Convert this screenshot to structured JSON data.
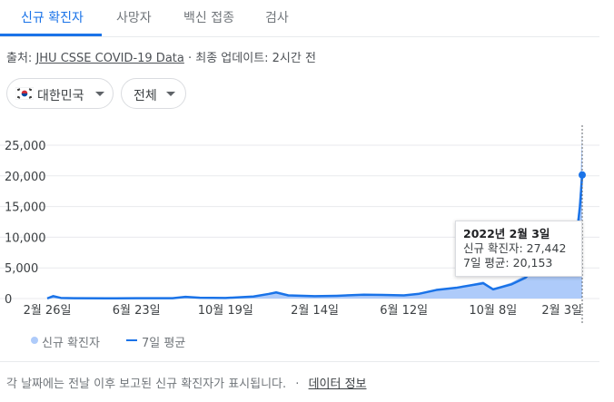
{
  "tabs": [
    {
      "label": "신규 확진자",
      "active": true
    },
    {
      "label": "사망자",
      "active": false
    },
    {
      "label": "백신 접종",
      "active": false
    },
    {
      "label": "검사",
      "active": false
    }
  ],
  "source": {
    "prefix": "출처: ",
    "link": "JHU CSSE COVID-19 Data",
    "suffix": " · 최종 업데이트: 2시간 전"
  },
  "filters": {
    "region": {
      "label": "대한민국",
      "icon": "korea-flag-icon"
    },
    "period": {
      "label": "전체"
    }
  },
  "colors": {
    "accent": "#1a73e8",
    "area_fill": "#aecbfa",
    "line": "#1a73e8",
    "grid": "#e8eaed"
  },
  "tooltip": {
    "title": "2022년 2월 3일",
    "cases_label": "신규 확진자: 27,442",
    "avg_label": "7일 평균: 20,153"
  },
  "legend": {
    "cases": "신규 확진자",
    "avg": "7일 평균"
  },
  "footer": {
    "note": "각 날짜에는 전날 이후 보고된 신규 확진자가 표시됩니다.",
    "sep": "·",
    "link": "데이터 정보"
  },
  "chart_data": {
    "type": "area",
    "title": "",
    "xlabel": "",
    "ylabel": "",
    "ylim": [
      0,
      25000
    ],
    "yticks": [
      "25,000",
      "20,000",
      "15,000",
      "10,000",
      "5,000",
      "0"
    ],
    "xticks": [
      "2월 26일",
      "6월 23일",
      "10월 19일",
      "2월 14일",
      "6월 12일",
      "10월 8일",
      "2월 3일"
    ],
    "grid": true,
    "legend_position": "bottom-left",
    "x": [
      "2020-02-26",
      "2020-03-05",
      "2020-03-15",
      "2020-04-01",
      "2020-05-15",
      "2020-06-23",
      "2020-08-10",
      "2020-08-27",
      "2020-09-15",
      "2020-10-19",
      "2020-11-25",
      "2020-12-15",
      "2020-12-25",
      "2021-01-10",
      "2021-02-14",
      "2021-03-15",
      "2021-04-20",
      "2021-05-15",
      "2021-06-12",
      "2021-07-01",
      "2021-07-25",
      "2021-08-20",
      "2021-09-25",
      "2021-10-08",
      "2021-11-01",
      "2021-11-20",
      "2021-12-15",
      "2022-01-01",
      "2022-01-15",
      "2022-01-25",
      "2022-01-31",
      "2022-02-03"
    ],
    "series": [
      {
        "name": "신규 확진자",
        "values": [
          20,
          420,
          80,
          60,
          30,
          50,
          50,
          320,
          120,
          90,
          350,
          850,
          1040,
          500,
          350,
          450,
          650,
          600,
          500,
          800,
          1500,
          1800,
          2800,
          1600,
          2600,
          3800,
          7500,
          4500,
          5000,
          9000,
          17500,
          27442
        ]
      },
      {
        "name": "7일 평균",
        "values": [
          20,
          400,
          100,
          60,
          30,
          50,
          50,
          280,
          130,
          90,
          330,
          750,
          1000,
          520,
          380,
          450,
          620,
          600,
          520,
          750,
          1400,
          1750,
          2500,
          1500,
          2300,
          3400,
          6500,
          4300,
          4800,
          8500,
          15000,
          20153
        ]
      }
    ]
  }
}
